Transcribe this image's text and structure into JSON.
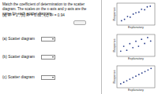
{
  "question": {
    "text": "Match the coefficient of determination to the scatter diagram. The scales on the x-axis and y-axis are the same for each scatter diagram.",
    "values_line": "(a) R² = 1 , (b) R² = 0.62 , (c) R² = 0.94",
    "answers": [
      "(a) Scatter diagram",
      "(b) Scatter diagram",
      "(c) Scatter diagram"
    ]
  },
  "chart_data": [
    {
      "type": "scatter",
      "xlabel": "Explanatory",
      "ylabel": "Response",
      "tick_labels": false,
      "marker": "circle",
      "color": "#2b3f8c",
      "xlim": [
        0,
        10
      ],
      "ylim": [
        0,
        10
      ],
      "x": [
        1.2,
        2.0,
        2.8,
        3.5,
        4.3,
        5.0,
        5.8,
        6.5,
        7.3,
        8.0,
        8.8
      ],
      "values": [
        2.0,
        2.6,
        3.9,
        3.6,
        5.0,
        5.6,
        5.9,
        7.2,
        7.0,
        8.3,
        8.6
      ]
    },
    {
      "type": "scatter",
      "xlabel": "Explanatory",
      "ylabel": "Response",
      "tick_labels": false,
      "marker": "circle",
      "color": "#2b3f8c",
      "xlim": [
        0,
        10
      ],
      "ylim": [
        0,
        10
      ],
      "x": [
        1.0,
        1.8,
        2.6,
        3.4,
        4.2,
        5.0,
        5.7,
        6.5,
        7.3,
        8.1,
        8.9
      ],
      "values": [
        2.4,
        4.6,
        2.8,
        5.8,
        4.0,
        6.9,
        4.6,
        7.8,
        5.9,
        8.6,
        7.0
      ]
    },
    {
      "type": "scatter",
      "xlabel": "Explanatory",
      "ylabel": "Response",
      "tick_labels": false,
      "marker": "circle",
      "color": "#2b3f8c",
      "xlim": [
        0,
        10
      ],
      "ylim": [
        0,
        10
      ],
      "x": [
        1.0,
        1.8,
        2.6,
        3.4,
        4.2,
        5.0,
        5.8,
        6.6,
        7.4,
        8.2,
        9.0
      ],
      "values": [
        1.8,
        2.5,
        3.2,
        3.9,
        4.6,
        5.3,
        6.0,
        6.7,
        7.4,
        8.1,
        8.8
      ]
    }
  ]
}
